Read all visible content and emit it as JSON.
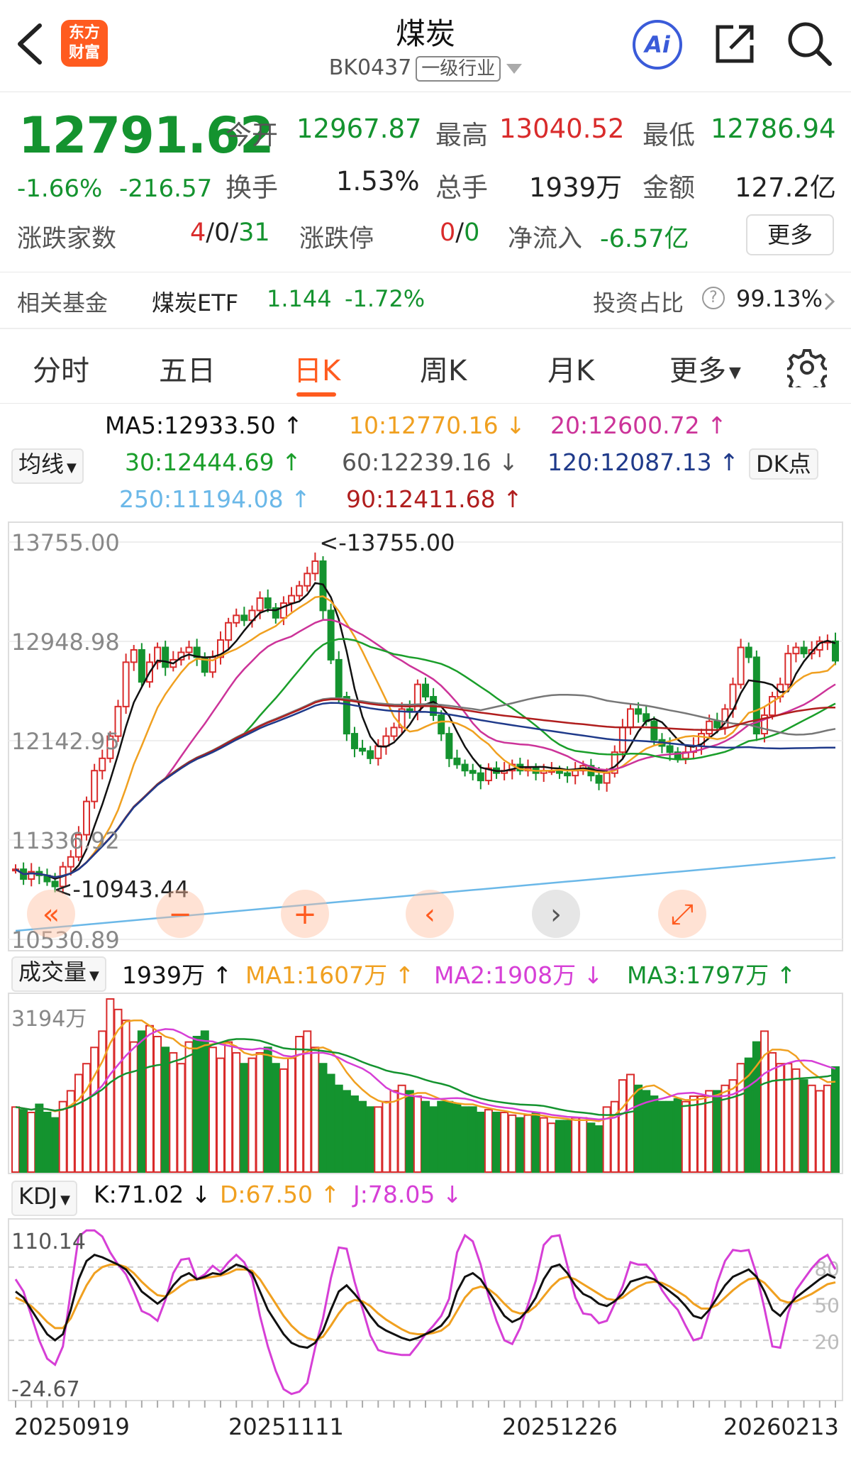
{
  "header": {
    "title": "煤炭",
    "code": "BK0437",
    "category": "一级行业",
    "logo_line1": "东方",
    "logo_line2": "财富",
    "ai_label": "Ai"
  },
  "quote": {
    "price": "12791.62",
    "change_pct": "-1.66%",
    "change_abs": "-216.57",
    "open_label": "今开",
    "open": "12967.87",
    "high_label": "最高",
    "high": "13040.52",
    "low_label": "最低",
    "low": "12786.94",
    "turnover_label": "换手",
    "turnover": "1.53%",
    "volume_label": "总手",
    "volume": "1939万",
    "amount_label": "金额",
    "amount": "127.2亿",
    "breadth_label": "涨跌家数",
    "breadth_up": "4",
    "breadth_flat": "0",
    "breadth_down": "31",
    "limit_label": "涨跌停",
    "limit_up": "0",
    "limit_down": "0",
    "netflow_label": "净流入",
    "netflow": "-6.57亿",
    "more_label": "更多"
  },
  "fund": {
    "label": "相关基金",
    "name": "煤炭ETF",
    "price": "1.144",
    "change": "-1.72%",
    "ratio_label": "投资占比",
    "ratio": "99.13%"
  },
  "tabs": [
    {
      "label": "分时"
    },
    {
      "label": "五日"
    },
    {
      "label": "日K"
    },
    {
      "label": "周K"
    },
    {
      "label": "月K"
    },
    {
      "label": "更多"
    }
  ],
  "ma_panel": {
    "selector": "均线",
    "ma5": "MA5:12933.50",
    "ma10": "10:12770.16",
    "ma20": "20:12600.72",
    "ma30": "30:12444.69",
    "ma60": "60:12239.16",
    "ma120": "120:12087.13",
    "ma250": "250:11194.08",
    "ma90": "90:12411.68",
    "dk_label": "DK点"
  },
  "volume_panel": {
    "selector": "成交量",
    "vol": "1939万",
    "ma1": "MA1:1607万",
    "ma2": "MA2:1908万",
    "ma3": "MA3:1797万",
    "axis_top": "3194万"
  },
  "kdj_panel": {
    "selector": "KDJ",
    "k": "K:71.02",
    "d": "D:67.50",
    "j": "J:78.05",
    "axis_top": "110.14",
    "axis_bottom": "-24.67",
    "ref_80": "80",
    "ref_50": "50",
    "ref_20": "20"
  },
  "colors": {
    "up": "#d92b2b",
    "down": "#14932f",
    "accent": "#ff5b1f",
    "ma5": "#111111",
    "ma10": "#f0a020",
    "ma20": "#cc3399",
    "ma30": "#1a9e2a",
    "ma60": "#777777",
    "ma120": "#1f3a8a",
    "ma250": "#6bb8e8",
    "ma90": "#b01e1e",
    "kdj_k": "#111111",
    "kdj_d": "#f0a020",
    "kdj_j": "#d63fd6"
  },
  "chart_data": {
    "type": "candlestick",
    "price_axis": [
      "13755.00",
      "12948.98",
      "12142.95",
      "11336.92",
      "10530.89"
    ],
    "ylim": [
      10530.89,
      13755.0
    ],
    "annotation_high": "<-13755.00",
    "annotation_low": "<-10943.44",
    "x_labels": [
      "20250919",
      "20251111",
      "20251226",
      "20260213"
    ],
    "high_marker": 13755.0,
    "low_marker": 10943.44,
    "last_close": 12791.62,
    "ma_last": {
      "ma5": 12933.5,
      "ma10": 12770.16,
      "ma20": 12600.72,
      "ma30": 12444.69,
      "ma60": 12239.16,
      "ma90": 12411.68,
      "ma120": 12087.13,
      "ma250": 11194.08
    },
    "close_series": [
      11100,
      11020,
      11080,
      11050,
      11000,
      10960,
      11120,
      11200,
      11380,
      11650,
      11900,
      12000,
      12180,
      12420,
      12780,
      12880,
      12620,
      12780,
      12900,
      12740,
      12800,
      12860,
      12900,
      12820,
      12700,
      12820,
      12960,
      13100,
      13160,
      13120,
      13200,
      13300,
      13220,
      13140,
      13260,
      13320,
      13400,
      13500,
      13600,
      13200,
      12800,
      12500,
      12200,
      12080,
      12060,
      12000,
      12100,
      12180,
      12250,
      12400,
      12380,
      12600,
      12500,
      12350,
      12200,
      12000,
      11950,
      11900,
      11880,
      11820,
      11920,
      11880,
      11900,
      11950,
      11900,
      11920,
      11880,
      11900,
      11900,
      11880,
      11860,
      11900,
      11940,
      11860,
      11800,
      11880,
      12050,
      12250,
      12400,
      12360,
      12300,
      12150,
      12100,
      12050,
      12000,
      12050,
      12100,
      12200,
      12300,
      12250,
      12400,
      12600,
      12900,
      12820,
      12200,
      12350,
      12500,
      12600,
      12850,
      12900,
      12850,
      12880,
      12950,
      12950,
      12791.62
    ],
    "volume_series": [
      1200,
      1150,
      1100,
      1250,
      1100,
      1000,
      1300,
      1500,
      1800,
      2000,
      2300,
      2600,
      3194,
      3000,
      2800,
      2400,
      2600,
      2700,
      2500,
      2300,
      2200,
      2000,
      2400,
      2500,
      2600,
      2300,
      2100,
      2400,
      2200,
      2000,
      2100,
      2200,
      2300,
      2000,
      1900,
      2100,
      2500,
      2600,
      2300,
      2000,
      1800,
      1600,
      1500,
      1400,
      1300,
      1200,
      1200,
      1300,
      1500,
      1600,
      1500,
      1400,
      1300,
      1200,
      1300,
      1300,
      1250,
      1200,
      1200,
      1100,
      1150,
      1100,
      1100,
      1050,
      1000,
      1050,
      1100,
      1000,
      900,
      950,
      950,
      1000,
      1000,
      900,
      850,
      1200,
      1300,
      1700,
      1800,
      1600,
      1500,
      1400,
      1300,
      1300,
      1350,
      1300,
      1400,
      1400,
      1500,
      1500,
      1600,
      1700,
      2000,
      2100,
      2400,
      2600,
      2200,
      2000,
      2000,
      1900,
      1700,
      1600,
      1500,
      1600,
      1939
    ],
    "kdj_k_series": [
      60,
      55,
      45,
      35,
      25,
      20,
      25,
      45,
      70,
      85,
      90,
      88,
      85,
      82,
      78,
      70,
      60,
      55,
      50,
      55,
      65,
      72,
      75,
      70,
      72,
      75,
      74,
      78,
      82,
      80,
      75,
      60,
      45,
      35,
      25,
      18,
      15,
      14,
      18,
      28,
      45,
      60,
      65,
      58,
      50,
      40,
      32,
      28,
      25,
      22,
      20,
      22,
      25,
      28,
      32,
      40,
      60,
      72,
      75,
      70,
      60,
      50,
      40,
      35,
      38,
      45,
      55,
      70,
      80,
      82,
      75,
      65,
      58,
      55,
      50,
      48,
      52,
      58,
      68,
      70,
      72,
      70,
      65,
      60,
      55,
      48,
      40,
      38,
      45,
      55,
      65,
      72,
      75,
      78,
      72,
      60,
      45,
      40,
      48,
      55,
      60,
      65,
      70,
      74,
      71.02
    ],
    "kdj_d_series": [
      55,
      52,
      48,
      42,
      35,
      30,
      30,
      38,
      52,
      65,
      75,
      80,
      82,
      82,
      80,
      75,
      68,
      62,
      57,
      56,
      60,
      65,
      69,
      70,
      71,
      72,
      73,
      75,
      78,
      78,
      77,
      70,
      60,
      50,
      40,
      32,
      26,
      22,
      20,
      23,
      32,
      42,
      50,
      53,
      52,
      48,
      42,
      37,
      33,
      29,
      26,
      25,
      25,
      26,
      28,
      33,
      44,
      55,
      62,
      64,
      62,
      57,
      50,
      44,
      42,
      43,
      48,
      56,
      64,
      70,
      72,
      70,
      66,
      62,
      58,
      54,
      53,
      55,
      60,
      64,
      67,
      68,
      67,
      64,
      60,
      56,
      50,
      46,
      46,
      49,
      55,
      61,
      66,
      70,
      71,
      67,
      60,
      53,
      51,
      52,
      55,
      58,
      62,
      66,
      67.5
    ],
    "kdj_j_series": [
      70,
      60,
      40,
      20,
      5,
      0,
      15,
      60,
      105,
      110,
      110,
      105,
      92,
      82,
      74,
      60,
      44,
      41,
      36,
      53,
      75,
      86,
      87,
      70,
      74,
      81,
      76,
      84,
      90,
      84,
      71,
      40,
      15,
      -5,
      -20,
      -24,
      -22,
      -15,
      14,
      38,
      71,
      96,
      95,
      68,
      46,
      24,
      12,
      10,
      9,
      8,
      8,
      16,
      25,
      32,
      40,
      54,
      92,
      106,
      101,
      82,
      56,
      36,
      20,
      17,
      30,
      49,
      69,
      98,
      105,
      106,
      81,
      55,
      42,
      41,
      34,
      36,
      50,
      64,
      84,
      82,
      82,
      74,
      61,
      52,
      45,
      32,
      20,
      22,
      43,
      67,
      85,
      94,
      93,
      94,
      74,
      46,
      15,
      14,
      42,
      61,
      70,
      79,
      86,
      90,
      78.05
    ]
  }
}
